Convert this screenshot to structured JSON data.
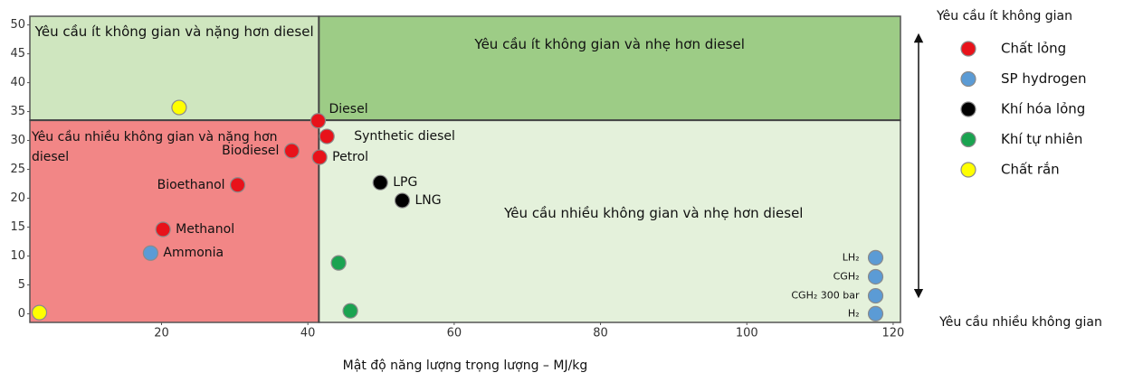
{
  "chart_data": {
    "type": "scatter",
    "x_label": "Mật độ năng lượng trọng lượng – MJ/kg",
    "xlim": [
      2,
      121
    ],
    "ylim": [
      -1.5,
      51.5
    ],
    "xticks": [
      20,
      40,
      60,
      80,
      100,
      120
    ],
    "yticks": [
      0,
      5,
      10,
      15,
      20,
      25,
      30,
      35,
      40,
      45,
      50
    ],
    "reference_x": 41.5,
    "reference_y": 33.5,
    "regions": [
      {
        "label": "Yêu cầu ít không gian và nặng hơn diesel",
        "color": "#cfe6bf"
      },
      {
        "label": "Yêu cầu ít không gian và nhẹ hơn diesel",
        "color": "#9dcc86"
      },
      {
        "label": "Yêu cầu nhiều không gian và nặng hơn diesel",
        "color": "#f28686"
      },
      {
        "label": "Yêu cầu nhiều không gian và nhẹ hơn diesel",
        "color": "#e4f1db"
      }
    ],
    "arrow_top_label": "Yêu cầu ít không gian",
    "arrow_bottom_label": "Yêu cầu nhiều không gian",
    "series": [
      {
        "name": "Chất lỏng",
        "color": "#e8121a",
        "x": [
          41.4,
          42.6,
          37.8,
          41.6,
          30.4,
          20.2
        ],
        "values": [
          33.4,
          30.7,
          28.2,
          27.1,
          22.3,
          14.6
        ],
        "labels": [
          "Diesel",
          "Synthetic diesel",
          "Biodiesel",
          "Petrol",
          "Bioethanol",
          "Methanol"
        ]
      },
      {
        "name": "SP hydrogen",
        "color": "#5b9bd5",
        "x": [
          18.5,
          117.6,
          117.6,
          117.6,
          117.6
        ],
        "values": [
          10.5,
          9.7,
          6.4,
          3.1,
          0
        ],
        "labels": [
          "Ammonia",
          "LH₂",
          "CGH₂",
          "CGH₂ 300 bar",
          "H₂"
        ]
      },
      {
        "name": "Khí hóa lỏng",
        "color": "#000000",
        "x": [
          49.9,
          52.9
        ],
        "values": [
          22.7,
          19.6
        ],
        "labels": [
          "LPG",
          "LNG"
        ]
      },
      {
        "name": "Khí tự nhiên",
        "color": "#1aa350",
        "x": [
          44.2,
          45.8
        ],
        "values": [
          8.8,
          0.5
        ],
        "labels": [
          null,
          null
        ]
      },
      {
        "name": "Chất rắn",
        "color": "#ffff00",
        "x": [
          22.4,
          3.3
        ],
        "values": [
          35.7,
          0.2
        ],
        "labels": [
          null,
          null
        ]
      }
    ]
  }
}
